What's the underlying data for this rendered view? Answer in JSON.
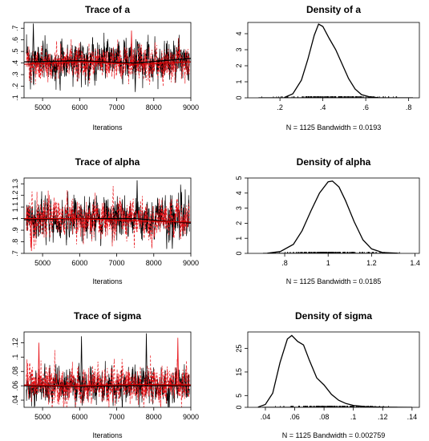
{
  "chart_data": [
    {
      "type": "line",
      "kind": "trace",
      "title": "Trace of a",
      "xlabel": "Iterations",
      "ylabel": "",
      "xlim": [
        4500,
        9000
      ],
      "ylim": [
        0.1,
        0.75
      ],
      "xticks": [
        5000,
        6000,
        7000,
        8000,
        9000
      ],
      "yticks": [
        0.1,
        0.2,
        0.3,
        0.4,
        0.5,
        0.6,
        0.7
      ],
      "x_step": 4,
      "series": [
        {
          "color": "#000000",
          "style": "solid",
          "mean": 0.42,
          "sd": 0.08,
          "smooth": [
            [
              4500,
              0.41
            ],
            [
              6000,
              0.42
            ],
            [
              7500,
              0.4
            ],
            [
              9000,
              0.44
            ]
          ]
        },
        {
          "color": "#e8141a",
          "style": "dashed",
          "mean": 0.4,
          "sd": 0.07,
          "smooth": [
            [
              4500,
              0.39
            ],
            [
              6000,
              0.41
            ],
            [
              7500,
              0.39
            ],
            [
              9000,
              0.41
            ]
          ]
        }
      ],
      "spikes": [
        [
          7500,
          0.15
        ],
        [
          7400,
          0.68
        ],
        [
          4750,
          0.74
        ]
      ]
    },
    {
      "type": "line",
      "kind": "density",
      "title": "Density of a",
      "xlabel": "N = 1125   Bandwidth = 0.0193",
      "ylabel": "",
      "xlim": [
        0.05,
        0.85
      ],
      "ylim": [
        0,
        4.7
      ],
      "xticks": [
        0.2,
        0.4,
        0.6,
        0.8
      ],
      "yticks": [
        0,
        1,
        2,
        3,
        4
      ],
      "curve": [
        [
          0.22,
          0.02
        ],
        [
          0.26,
          0.25
        ],
        [
          0.3,
          1.1
        ],
        [
          0.33,
          2.4
        ],
        [
          0.36,
          3.9
        ],
        [
          0.38,
          4.6
        ],
        [
          0.4,
          4.45
        ],
        [
          0.43,
          3.7
        ],
        [
          0.46,
          3.0
        ],
        [
          0.49,
          2.1
        ],
        [
          0.52,
          1.2
        ],
        [
          0.55,
          0.55
        ],
        [
          0.58,
          0.2
        ],
        [
          0.62,
          0.05
        ],
        [
          0.66,
          0.01
        ]
      ],
      "rug": [
        0.1,
        0.82
      ]
    },
    {
      "type": "line",
      "kind": "trace",
      "title": "Trace of alpha",
      "xlabel": "Iterations",
      "ylabel": "",
      "xlim": [
        4500,
        9000
      ],
      "ylim": [
        0.7,
        1.35
      ],
      "xticks": [
        5000,
        6000,
        7000,
        8000,
        9000
      ],
      "yticks": [
        0.7,
        0.8,
        0.9,
        1.0,
        1.1,
        1.2,
        1.3
      ],
      "x_step": 4,
      "series": [
        {
          "color": "#000000",
          "style": "solid",
          "mean": 1.0,
          "sd": 0.08,
          "smooth": [
            [
              4500,
              0.99
            ],
            [
              6000,
              1.0
            ],
            [
              7500,
              1.0
            ],
            [
              9000,
              0.96
            ]
          ]
        },
        {
          "color": "#e8141a",
          "style": "dashed",
          "mean": 1.0,
          "sd": 0.08,
          "smooth": [
            [
              4500,
              1.0
            ],
            [
              6000,
              1.0
            ],
            [
              7500,
              0.98
            ],
            [
              9000,
              0.97
            ]
          ]
        }
      ],
      "spikes": [
        [
          7550,
          1.33
        ],
        [
          4700,
          0.72
        ],
        [
          8500,
          0.74
        ]
      ]
    },
    {
      "type": "line",
      "kind": "density",
      "title": "Density of alpha",
      "xlabel": "N = 1125   Bandwidth = 0.0185",
      "ylabel": "",
      "xlim": [
        0.63,
        1.42
      ],
      "ylim": [
        0,
        5.0
      ],
      "xticks": [
        0.8,
        1.0,
        1.2,
        1.4
      ],
      "yticks": [
        0,
        1,
        2,
        3,
        4,
        5
      ],
      "curve": [
        [
          0.72,
          0.01
        ],
        [
          0.78,
          0.12
        ],
        [
          0.84,
          0.6
        ],
        [
          0.88,
          1.5
        ],
        [
          0.92,
          2.8
        ],
        [
          0.96,
          4.0
        ],
        [
          1.0,
          4.75
        ],
        [
          1.02,
          4.8
        ],
        [
          1.05,
          4.4
        ],
        [
          1.08,
          3.5
        ],
        [
          1.12,
          2.1
        ],
        [
          1.16,
          0.9
        ],
        [
          1.2,
          0.3
        ],
        [
          1.25,
          0.06
        ],
        [
          1.32,
          0.01
        ]
      ],
      "rug": [
        0.7,
        1.33
      ]
    },
    {
      "type": "line",
      "kind": "trace",
      "title": "Trace of sigma",
      "xlabel": "Iterations",
      "ylabel": "",
      "xlim": [
        4500,
        9000
      ],
      "ylim": [
        0.03,
        0.135
      ],
      "xticks": [
        5000,
        6000,
        7000,
        8000,
        9000
      ],
      "yticks": [
        0.04,
        0.06,
        0.08,
        0.1,
        0.12
      ],
      "x_step": 4,
      "series": [
        {
          "color": "#000000",
          "style": "solid",
          "mean": 0.06,
          "sd": 0.011,
          "smooth": [
            [
              4500,
              0.06
            ],
            [
              6000,
              0.059
            ],
            [
              7500,
              0.06
            ],
            [
              9000,
              0.06
            ]
          ]
        },
        {
          "color": "#e8141a",
          "style": "dashed",
          "mean": 0.061,
          "sd": 0.013,
          "smooth": [
            [
              4500,
              0.061
            ],
            [
              6000,
              0.06
            ],
            [
              7500,
              0.062
            ],
            [
              9000,
              0.061
            ]
          ]
        }
      ],
      "spikes": [
        [
          7800,
          0.133
        ],
        [
          8650,
          0.127
        ],
        [
          6050,
          0.129
        ],
        [
          4900,
          0.12
        ]
      ]
    },
    {
      "type": "line",
      "kind": "density",
      "title": "Density of sigma",
      "xlabel": "N = 1125   Bandwidth = 0.002759",
      "ylabel": "",
      "xlim": [
        0.028,
        0.145
      ],
      "ylim": [
        0,
        32
      ],
      "xticks": [
        0.04,
        0.06,
        0.08,
        0.1,
        0.12,
        0.14
      ],
      "yticks": [
        0,
        5,
        15,
        25
      ],
      "curve": [
        [
          0.035,
          0.1
        ],
        [
          0.04,
          1.2
        ],
        [
          0.045,
          6.0
        ],
        [
          0.05,
          19.0
        ],
        [
          0.055,
          29.0
        ],
        [
          0.058,
          30.5
        ],
        [
          0.062,
          28.0
        ],
        [
          0.066,
          26.5
        ],
        [
          0.07,
          20.0
        ],
        [
          0.075,
          12.5
        ],
        [
          0.08,
          9.5
        ],
        [
          0.085,
          5.5
        ],
        [
          0.09,
          3.0
        ],
        [
          0.095,
          1.6
        ],
        [
          0.1,
          0.8
        ],
        [
          0.11,
          0.2
        ],
        [
          0.125,
          0.05
        ],
        [
          0.14,
          0.0
        ]
      ],
      "rug": [
        0.038,
        0.13
      ]
    }
  ]
}
